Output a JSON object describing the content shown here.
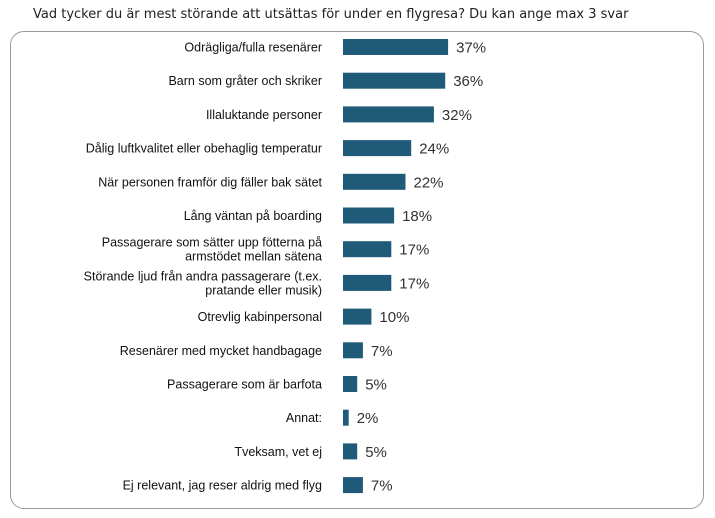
{
  "chart_data": {
    "type": "bar",
    "orientation": "horizontal",
    "title": "Vad tycker du är mest störande att utsättas för under en flygresa? Du kan ange max 3 svar",
    "categories": [
      "Odrägliga/fulla resenärer",
      "Barn som gråter och skriker",
      "Illaluktande personer",
      "Dålig luftkvalitet eller obehaglig temperatur",
      "När personen framför dig fäller bak sätet",
      "Lång väntan på boarding",
      "Passagerare som sätter upp fötterna på armstödet mellan sätena",
      "Störande ljud från andra passagerare (t.ex. pratande eller musik)",
      "Otrevlig kabinpersonal",
      "Resenärer med mycket handbagage",
      "Passagerare som är barfota",
      "Annat:",
      "Tveksam, vet ej",
      "Ej relevant, jag reser aldrig med flyg"
    ],
    "category_lines": [
      [
        "Odrägliga/fulla resenärer"
      ],
      [
        "Barn som gråter och skriker"
      ],
      [
        "Illaluktande personer"
      ],
      [
        "Dålig luftkvalitet eller obehaglig temperatur"
      ],
      [
        "När personen framför dig fäller bak sätet"
      ],
      [
        "Lång väntan på boarding"
      ],
      [
        "Passagerare som sätter upp fötterna på",
        "armstödet mellan sätena"
      ],
      [
        "Störande ljud från andra passagerare (t.ex.",
        "pratande eller musik)"
      ],
      [
        "Otrevlig kabinpersonal"
      ],
      [
        "Resenärer med mycket handbagage"
      ],
      [
        "Passagerare som är barfota"
      ],
      [
        "Annat:"
      ],
      [
        "Tveksam, vet ej"
      ],
      [
        "Ej relevant, jag reser aldrig med flyg"
      ]
    ],
    "values": [
      37,
      36,
      32,
      24,
      22,
      18,
      17,
      17,
      10,
      7,
      5,
      2,
      5,
      7
    ],
    "value_labels": [
      "37%",
      "36%",
      "32%",
      "24%",
      "22%",
      "18%",
      "17%",
      "17%",
      "10%",
      "7%",
      "5%",
      "2%",
      "5%",
      "7%"
    ],
    "unit": "%",
    "bar_color": "#1f5a78",
    "grid": false,
    "legend": "none"
  }
}
